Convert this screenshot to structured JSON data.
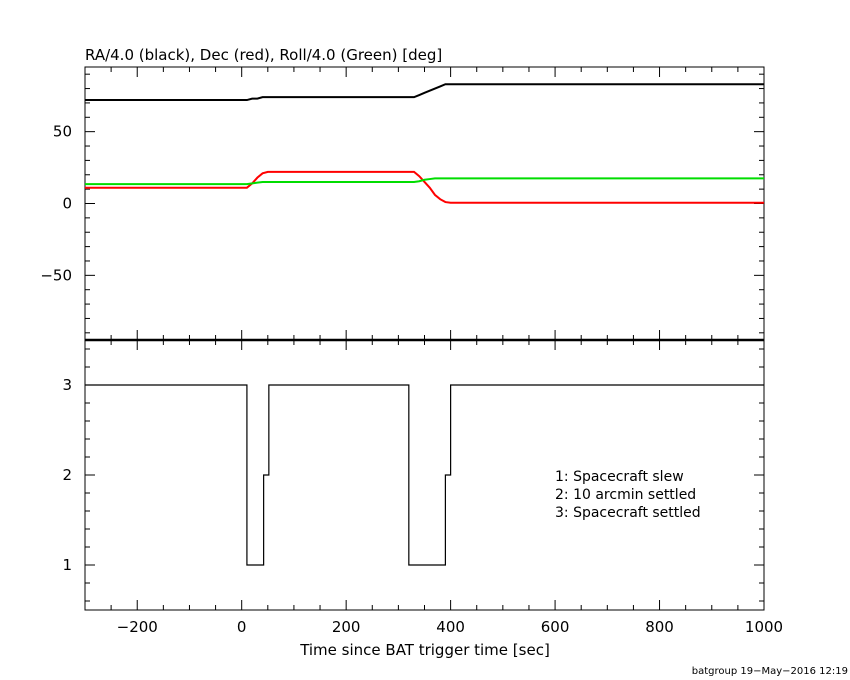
{
  "chart_data": [
    {
      "type": "line",
      "title": "RA/4.0 (black), Dec (red), Roll/4.0 (Green) [deg]",
      "xlim": [
        -300,
        1000
      ],
      "ylim": [
        -95,
        95
      ],
      "y_ticks": [
        -50,
        0,
        50
      ],
      "y_tick_labels": [
        "−50",
        "0",
        "50"
      ],
      "grid": false,
      "series": [
        {
          "color": "#000000",
          "x": [
            -300,
            0,
            10,
            20,
            30,
            40,
            50,
            320,
            330,
            340,
            350,
            360,
            370,
            380,
            390,
            400,
            1000
          ],
          "y": [
            72,
            72,
            72,
            73,
            73,
            74,
            74,
            74,
            74,
            75.5,
            77,
            78.5,
            80,
            81.5,
            83,
            83,
            83
          ]
        },
        {
          "color": "#ff0000",
          "x": [
            -300,
            0,
            10,
            20,
            30,
            40,
            50,
            320,
            330,
            340,
            350,
            360,
            370,
            380,
            390,
            400,
            1000
          ],
          "y": [
            11,
            11,
            11,
            14,
            18,
            21,
            22,
            22,
            22,
            19,
            15,
            11,
            6,
            3,
            1,
            0.5,
            0.5
          ]
        },
        {
          "color": "#00dd00",
          "x": [
            -300,
            0,
            10,
            20,
            30,
            40,
            50,
            320,
            330,
            340,
            350,
            360,
            370,
            380,
            390,
            400,
            1000
          ],
          "y": [
            13.5,
            13.5,
            13.5,
            14,
            14.5,
            15,
            15,
            15,
            15,
            15.5,
            16.5,
            17,
            17.5,
            17.5,
            17.5,
            17.5,
            17.5
          ]
        }
      ]
    },
    {
      "type": "line",
      "title": "",
      "xlabel": "Time since BAT trigger time [sec]",
      "xlim": [
        -300,
        1000
      ],
      "ylim": [
        0.5,
        3.5
      ],
      "x_ticks": [
        -200,
        0,
        200,
        400,
        600,
        800,
        1000
      ],
      "x_tick_labels": [
        "−200",
        "0",
        "200",
        "400",
        "600",
        "800",
        "1000"
      ],
      "y_ticks": [
        1,
        2,
        3
      ],
      "y_tick_labels": [
        "1",
        "2",
        "3"
      ],
      "grid": false,
      "series": [
        {
          "color": "#000000",
          "step": true,
          "x": [
            -300,
            10,
            10,
            42,
            42,
            52,
            52,
            320,
            320,
            390,
            390,
            400,
            400,
            1000
          ],
          "y": [
            3,
            3,
            1,
            1,
            2,
            2,
            3,
            3,
            1,
            1,
            2,
            2,
            3,
            3
          ]
        }
      ],
      "annotations": [
        "1: Spacecraft slew",
        "2: 10 arcmin settled",
        "3: Spacecraft settled"
      ]
    }
  ],
  "footer": "batgroup 19−May−2016 12:19"
}
